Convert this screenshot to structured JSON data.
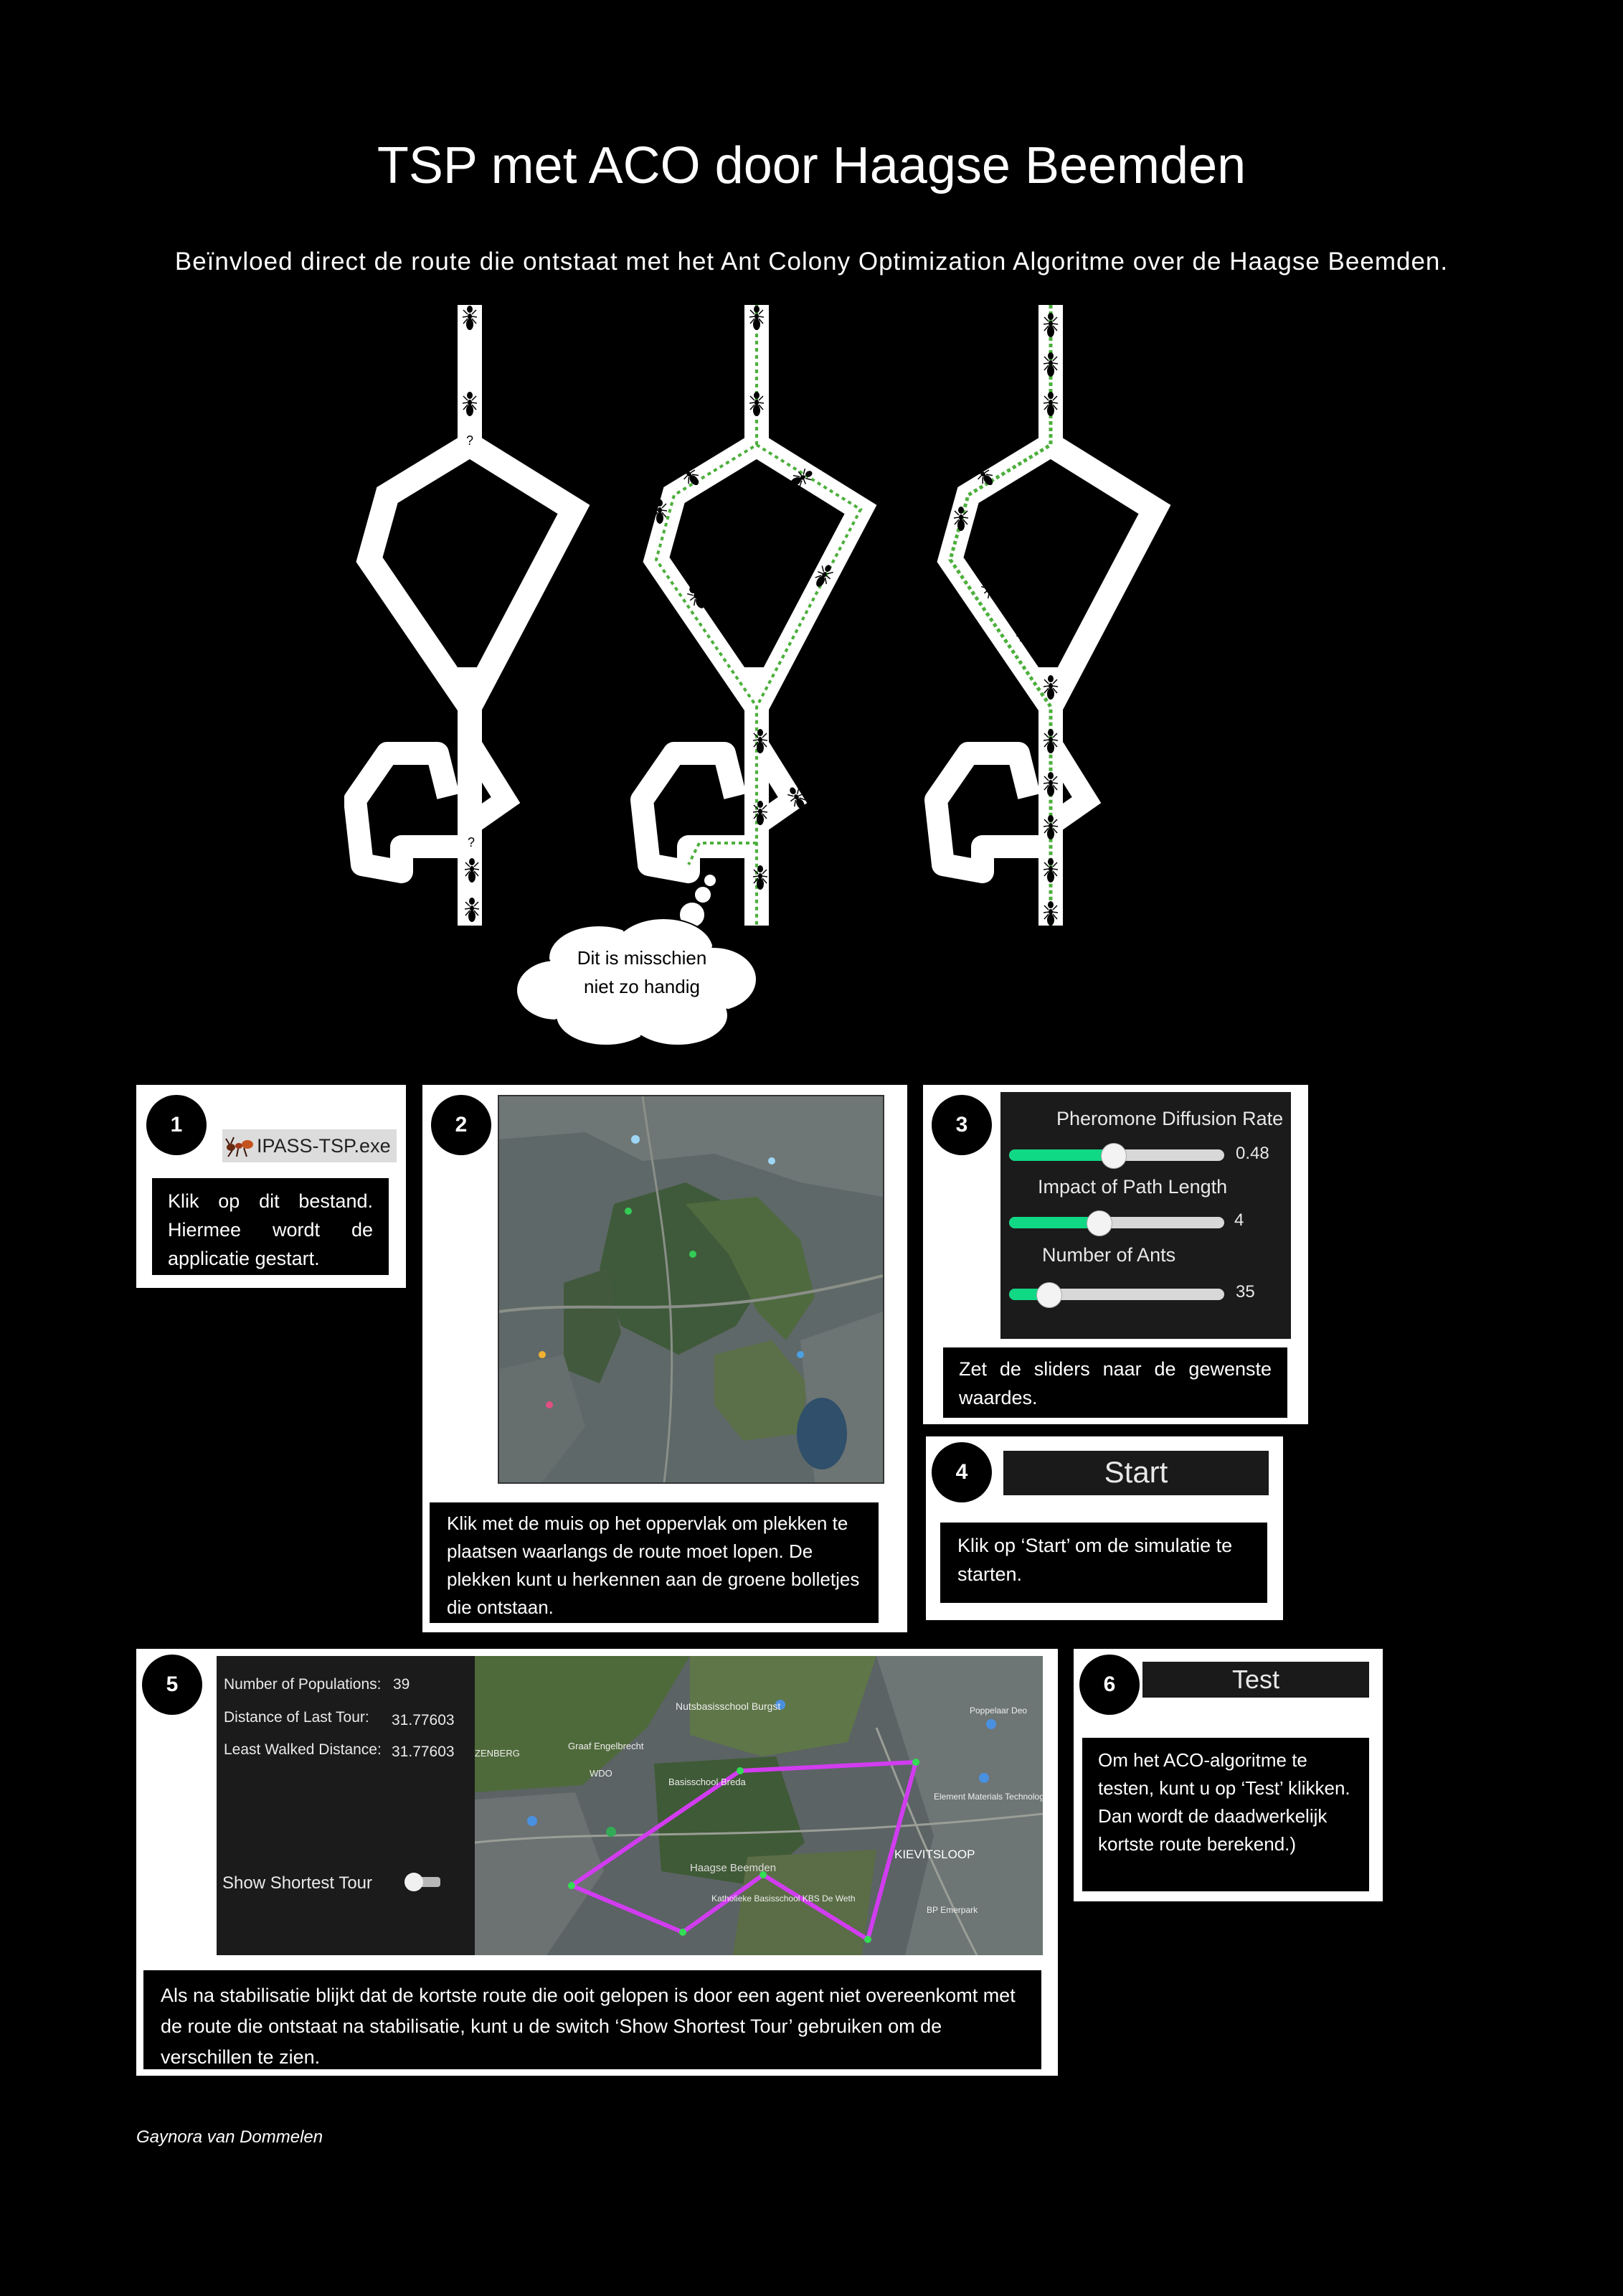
{
  "title": "TSP met ACO door Haagse Beemden",
  "subtitle": "Beïnvloed direct de route die ontstaat met het Ant Colony Optimization Algoritme over de Haagse Beemden.",
  "thought_bubble": {
    "line1": "Dit is misschien",
    "line2": "niet zo handig"
  },
  "step1": {
    "number": "1",
    "file_label": "IPASS-TSP.exe",
    "caption": "Klik op dit bestand. Hiermee wordt de applicatie gestart."
  },
  "step2": {
    "number": "2",
    "caption": "Klik met de muis op het oppervlak om plekken te plaatsen waarlangs de route moet lopen. De plekken kunt u herkennen aan de groene bolletjes die ontstaan."
  },
  "step3": {
    "number": "3",
    "sliders": [
      {
        "label": "Pheromone Diffusion Rate",
        "value": "0.48",
        "level": 0.48
      },
      {
        "label": "Impact of Path Length",
        "value": "4",
        "level": 0.4
      },
      {
        "label": "Number of Ants",
        "value": "35",
        "level": 0.18
      }
    ],
    "caption": "Zet de sliders naar de gewenste waardes."
  },
  "step4": {
    "number": "4",
    "button_label": "Start",
    "caption": "Klik op ‘Start’ om de simulatie te starten."
  },
  "step5": {
    "number": "5",
    "stats": {
      "populations_label": "Number of Populations:",
      "populations_value": "39",
      "distance_label": "Distance of Last Tour:",
      "distance_value": "31.77603",
      "least_label": "Least Walked Distance:",
      "least_value": "31.77603"
    },
    "toggle_label": "Show Shortest Tour",
    "map_labels": {
      "burgst": "Nutsbasisschool Burgst",
      "engelbrecht": "Graaf Engelbrecht",
      "zenberg": "ZENBERG",
      "wdo": "WDO",
      "breda": "Basisschool Breda",
      "beemden": "Haagse Beemden",
      "kievitsloop": "KIEVITSLOOP",
      "kbs": "Katholieke Basisschool KBS De Weth",
      "poppelaar": "Poppelaar Deo",
      "element": "Element Materials Technology",
      "bp": "BP Emerpark"
    },
    "caption": "Als na stabilisatie blijkt dat de kortste route die ooit gelopen is door een agent niet overeenkomt met de route die ontstaat na stabilisatie, kunt u de switch ‘Show Shortest Tour’ gebruiken om de verschillen te zien."
  },
  "step6": {
    "number": "6",
    "button_label": "Test",
    "caption": "Om het ACO-algoritme te testen, kunt u op ‘Test’ klikken. Dan wordt de daadwerkelijk kortste route berekend.)"
  },
  "author": "Gaynora van Dommelen",
  "colors": {
    "slider_fill": "#10d884",
    "route": "#d23cf0",
    "pheromone": "#4caf3c"
  }
}
